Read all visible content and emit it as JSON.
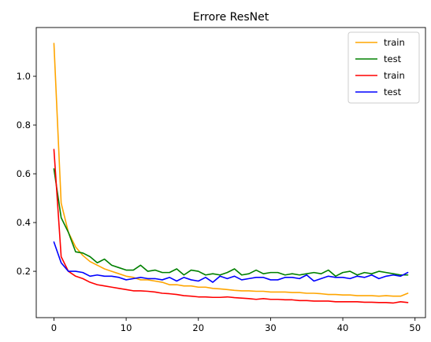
{
  "chart_data": {
    "type": "line",
    "title": "Errore ResNet",
    "xlabel": "",
    "ylabel": "",
    "xlim": [
      -2.45,
      51.45
    ],
    "ylim": [
      0.01,
      1.2
    ],
    "xticks": [
      0,
      10,
      20,
      30,
      40,
      50
    ],
    "yticks": [
      0.2,
      0.4,
      0.6,
      0.8,
      1.0
    ],
    "ytick_labels": [
      "0.2",
      "0.4",
      "0.6",
      "0.8",
      "1.0"
    ],
    "grid": false,
    "legend_position": "top-right",
    "x": [
      0,
      1,
      2,
      3,
      4,
      5,
      6,
      7,
      8,
      9,
      10,
      11,
      12,
      13,
      14,
      15,
      16,
      17,
      18,
      19,
      20,
      21,
      22,
      23,
      24,
      25,
      26,
      27,
      28,
      29,
      30,
      31,
      32,
      33,
      34,
      35,
      36,
      37,
      38,
      39,
      40,
      41,
      42,
      43,
      44,
      45,
      46,
      47,
      48,
      49
    ],
    "series": [
      {
        "name": "train",
        "color": "#ffa500",
        "values": [
          1.135,
          0.48,
          0.36,
          0.3,
          0.265,
          0.24,
          0.225,
          0.21,
          0.2,
          0.19,
          0.18,
          0.175,
          0.165,
          0.165,
          0.16,
          0.155,
          0.145,
          0.145,
          0.14,
          0.14,
          0.135,
          0.135,
          0.13,
          0.128,
          0.125,
          0.122,
          0.12,
          0.12,
          0.118,
          0.118,
          0.115,
          0.115,
          0.115,
          0.113,
          0.113,
          0.11,
          0.11,
          0.108,
          0.105,
          0.105,
          0.103,
          0.103,
          0.1,
          0.1,
          0.1,
          0.098,
          0.1,
          0.098,
          0.098,
          0.11
        ]
      },
      {
        "name": "test",
        "color": "#008000",
        "values": [
          0.62,
          0.42,
          0.36,
          0.28,
          0.275,
          0.26,
          0.235,
          0.25,
          0.225,
          0.215,
          0.205,
          0.205,
          0.225,
          0.2,
          0.205,
          0.195,
          0.195,
          0.21,
          0.185,
          0.205,
          0.2,
          0.185,
          0.19,
          0.185,
          0.195,
          0.21,
          0.185,
          0.19,
          0.205,
          0.19,
          0.195,
          0.195,
          0.185,
          0.19,
          0.185,
          0.19,
          0.195,
          0.19,
          0.205,
          0.18,
          0.195,
          0.2,
          0.185,
          0.195,
          0.19,
          0.2,
          0.195,
          0.19,
          0.185,
          0.185
        ]
      },
      {
        "name": "train",
        "color": "#ff0000",
        "values": [
          0.7,
          0.26,
          0.2,
          0.18,
          0.17,
          0.155,
          0.145,
          0.14,
          0.135,
          0.13,
          0.125,
          0.12,
          0.12,
          0.118,
          0.115,
          0.11,
          0.108,
          0.105,
          0.1,
          0.098,
          0.095,
          0.095,
          0.093,
          0.093,
          0.095,
          0.092,
          0.09,
          0.088,
          0.085,
          0.088,
          0.085,
          0.085,
          0.083,
          0.083,
          0.08,
          0.08,
          0.078,
          0.078,
          0.078,
          0.075,
          0.075,
          0.075,
          0.075,
          0.073,
          0.073,
          0.072,
          0.072,
          0.07,
          0.075,
          0.072
        ]
      },
      {
        "name": "test",
        "color": "#0000ff",
        "values": [
          0.32,
          0.235,
          0.2,
          0.2,
          0.195,
          0.18,
          0.185,
          0.18,
          0.18,
          0.175,
          0.165,
          0.17,
          0.175,
          0.17,
          0.17,
          0.165,
          0.175,
          0.16,
          0.175,
          0.165,
          0.16,
          0.175,
          0.155,
          0.18,
          0.17,
          0.18,
          0.165,
          0.17,
          0.175,
          0.175,
          0.165,
          0.165,
          0.175,
          0.175,
          0.17,
          0.185,
          0.16,
          0.17,
          0.18,
          0.175,
          0.175,
          0.17,
          0.18,
          0.175,
          0.185,
          0.17,
          0.18,
          0.185,
          0.18,
          0.195
        ]
      }
    ]
  }
}
